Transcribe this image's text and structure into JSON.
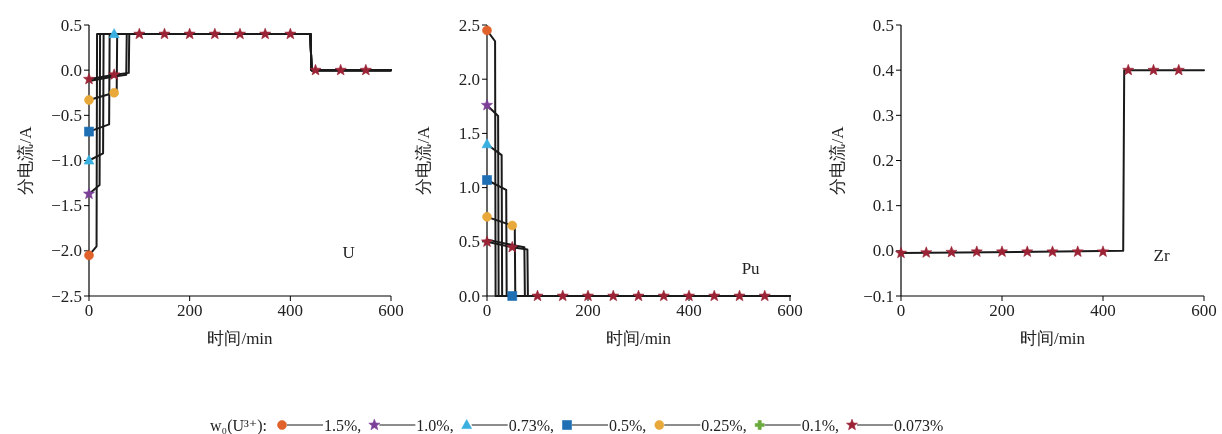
{
  "chart_data": [
    {
      "type": "line",
      "xlabel": "时间/min",
      "ylabel": "分电流/A",
      "xlim": [
        0,
        600
      ],
      "xticks": [
        0,
        200,
        400,
        600
      ],
      "ylim": [
        -2.5,
        0.5
      ],
      "yticks": [
        {
          "value": -2.5,
          "label": "−2.5"
        },
        {
          "value": -2,
          "label": "−2.0"
        },
        {
          "value": -1.5,
          "label": "−1.5"
        },
        {
          "value": -1,
          "label": "−1.0"
        },
        {
          "value": -0.5,
          "label": "−0.5"
        },
        {
          "value": 0,
          "label": "0.0"
        },
        0.5
      ],
      "annotations": [
        "U"
      ],
      "legend": "bottom",
      "legend_title": "w₀(U³⁺):",
      "series": [
        {
          "type": "line",
          "color": "#1a1a1a",
          "marker": "none",
          "x": [
            0,
            15,
            16,
            440,
            442,
            600
          ],
          "values": [
            -2.05,
            -1.95,
            0.4,
            0.4,
            0,
            0
          ]
        },
        {
          "type": "line",
          "color": "#1a1a1a",
          "marker": "none",
          "x": [
            0,
            21,
            22,
            440,
            442,
            600
          ],
          "values": [
            -1.37,
            -1.27,
            0.4,
            0.4,
            0,
            0
          ]
        },
        {
          "type": "line",
          "color": "#1a1a1a",
          "marker": "none",
          "x": [
            0,
            28,
            29,
            440,
            442,
            600
          ],
          "values": [
            -1.0,
            -0.92,
            0.4,
            0.4,
            0,
            0
          ]
        },
        {
          "type": "line",
          "color": "#1a1a1a",
          "marker": "none",
          "x": [
            0,
            40,
            41,
            440,
            442,
            600
          ],
          "values": [
            -0.68,
            -0.6,
            0.4,
            0.4,
            0,
            0
          ]
        },
        {
          "type": "line",
          "color": "#1a1a1a",
          "marker": "none",
          "x": [
            0,
            50,
            55,
            56,
            440,
            442,
            600
          ],
          "values": [
            -0.33,
            -0.25,
            -0.25,
            0.4,
            0.4,
            0,
            0
          ]
        },
        {
          "type": "line",
          "color": "#1a1a1a",
          "marker": "none",
          "x": [
            0,
            50,
            74,
            75,
            440,
            442,
            600
          ],
          "values": [
            -0.12,
            -0.07,
            -0.05,
            0.4,
            0.4,
            0,
            0
          ]
        },
        {
          "type": "line",
          "color": "#1a1a1a",
          "marker": "none",
          "x": [
            0,
            50,
            79,
            80,
            440,
            442,
            600
          ],
          "values": [
            -0.1,
            -0.05,
            -0.03,
            0.4,
            0.4,
            0,
            0
          ]
        },
        {
          "type": "scatter",
          "name": "1.5%,",
          "color": "#e0612a",
          "marker": "circle",
          "x": [
            0
          ],
          "values": [
            -2.05
          ]
        },
        {
          "type": "scatter",
          "name": "1.0%,",
          "color": "#7b3f98",
          "marker": "star",
          "x": [
            0
          ],
          "values": [
            -1.37
          ]
        },
        {
          "type": "scatter",
          "name": "0.73%,",
          "color": "#3ab0e0",
          "marker": "triangle",
          "x": [
            0,
            50
          ],
          "values": [
            -1.0,
            0.4
          ]
        },
        {
          "type": "scatter",
          "name": "0.5%,",
          "color": "#1f6fb5",
          "marker": "square",
          "x": [
            0
          ],
          "values": [
            -0.68
          ]
        },
        {
          "type": "scatter",
          "name": "0.25%,",
          "color": "#e8a93a",
          "marker": "circle",
          "x": [
            0,
            50
          ],
          "values": [
            -0.33,
            -0.25
          ]
        },
        {
          "type": "scatter",
          "name": "0.1%,",
          "color": "#6aab3c",
          "marker": "cross"
        },
        {
          "type": "scatter",
          "name": "0.073%",
          "color": "#9b2335",
          "marker": "star",
          "x": [
            0,
            50,
            100,
            150,
            200,
            250,
            300,
            350,
            400,
            450,
            500,
            550
          ],
          "values": [
            -0.1,
            -0.05,
            0.4,
            0.4,
            0.4,
            0.4,
            0.4,
            0.4,
            0.4,
            0,
            0,
            0
          ]
        }
      ]
    },
    {
      "type": "line",
      "xlabel": "时间/min",
      "ylabel": "分电流/A",
      "xlim": [
        0,
        600
      ],
      "xticks": [
        0,
        200,
        400,
        600
      ],
      "ylim": [
        0,
        2.5
      ],
      "yticks": [
        {
          "value": 0,
          "label": "0.0"
        },
        0.5,
        {
          "value": 1,
          "label": "1.0"
        },
        1.5,
        {
          "value": 2,
          "label": "2.0"
        },
        2.5
      ],
      "annotations": [
        "Pu"
      ],
      "series": [
        {
          "type": "line",
          "color": "#1a1a1a",
          "marker": "none",
          "x": [
            0,
            16,
            17,
            600
          ],
          "values": [
            2.45,
            2.35,
            0,
            0
          ]
        },
        {
          "type": "line",
          "color": "#1a1a1a",
          "marker": "none",
          "x": [
            0,
            22,
            23,
            600
          ],
          "values": [
            1.76,
            1.66,
            0,
            0
          ]
        },
        {
          "type": "line",
          "color": "#1a1a1a",
          "marker": "none",
          "x": [
            0,
            29,
            30,
            600
          ],
          "values": [
            1.4,
            1.3,
            0,
            0
          ]
        },
        {
          "type": "line",
          "color": "#1a1a1a",
          "marker": "none",
          "x": [
            0,
            38,
            39,
            600
          ],
          "values": [
            1.07,
            0.98,
            0,
            0
          ]
        },
        {
          "type": "line",
          "color": "#1a1a1a",
          "marker": "none",
          "x": [
            0,
            50,
            55,
            56,
            600
          ],
          "values": [
            0.73,
            0.65,
            0.65,
            0,
            0
          ]
        },
        {
          "type": "line",
          "color": "#1a1a1a",
          "marker": "none",
          "x": [
            0,
            50,
            74,
            75,
            600
          ],
          "values": [
            0.52,
            0.47,
            0.45,
            0,
            0
          ]
        },
        {
          "type": "line",
          "color": "#1a1a1a",
          "marker": "none",
          "x": [
            0,
            50,
            80,
            81,
            600
          ],
          "values": [
            0.5,
            0.45,
            0.43,
            0,
            0
          ]
        },
        {
          "type": "scatter",
          "color": "#e0612a",
          "marker": "circle",
          "x": [
            0
          ],
          "values": [
            2.45
          ]
        },
        {
          "type": "scatter",
          "color": "#7b3f98",
          "marker": "star",
          "x": [
            0
          ],
          "values": [
            1.76
          ]
        },
        {
          "type": "scatter",
          "color": "#3ab0e0",
          "marker": "triangle",
          "x": [
            0
          ],
          "values": [
            1.4
          ]
        },
        {
          "type": "scatter",
          "color": "#1f6fb5",
          "marker": "square",
          "x": [
            0,
            50
          ],
          "values": [
            1.07,
            0
          ]
        },
        {
          "type": "scatter",
          "color": "#e8a93a",
          "marker": "circle",
          "x": [
            0,
            50
          ],
          "values": [
            0.73,
            0.65
          ]
        },
        {
          "type": "scatter",
          "color": "#9b2335",
          "marker": "star",
          "x": [
            0,
            50,
            100,
            150,
            200,
            250,
            300,
            350,
            400,
            450,
            500,
            550
          ],
          "values": [
            0.5,
            0.45,
            0,
            0,
            0,
            0,
            0,
            0,
            0,
            0,
            0,
            0
          ]
        }
      ]
    },
    {
      "type": "line",
      "xlabel": "时间/min",
      "ylabel": "分电流/A",
      "xlim": [
        0,
        600
      ],
      "xticks": [
        0,
        200,
        400,
        600
      ],
      "ylim": [
        -0.1,
        0.5
      ],
      "yticks": [
        {
          "value": -0.1,
          "label": "−0.1"
        },
        {
          "value": 0,
          "label": "0.0"
        },
        0.1,
        0.2,
        0.3,
        0.4,
        0.5
      ],
      "annotations": [
        "Zr"
      ],
      "series": [
        {
          "type": "line",
          "color": "#1a1a1a",
          "marker": "none",
          "x": [
            0,
            440,
            442,
            600
          ],
          "values": [
            -0.005,
            0,
            0.4,
            0.4
          ]
        },
        {
          "type": "scatter",
          "color": "#9b2335",
          "marker": "star",
          "x": [
            0,
            50,
            100,
            150,
            200,
            250,
            300,
            350,
            400,
            450,
            500,
            550
          ],
          "values": [
            -0.005,
            -0.004,
            -0.003,
            -0.002,
            -0.002,
            -0.002,
            -0.002,
            -0.002,
            -0.002,
            0.4,
            0.4,
            0.4
          ]
        }
      ]
    }
  ]
}
